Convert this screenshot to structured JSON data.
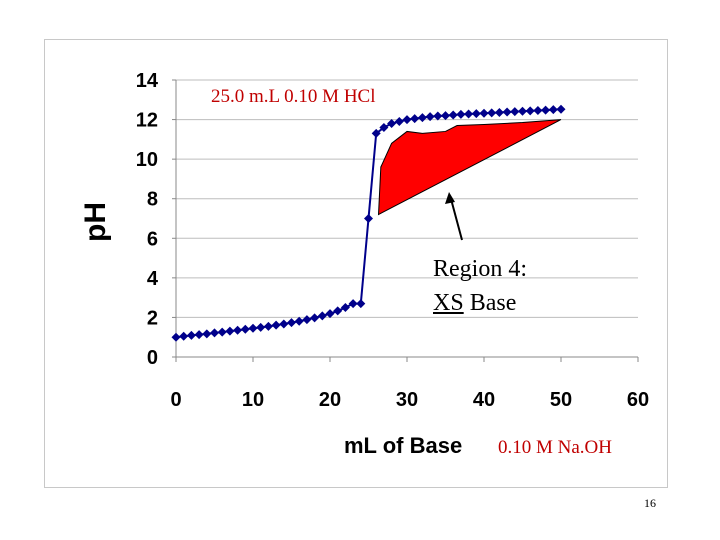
{
  "chart_data": {
    "type": "line",
    "title": "25.0 m.L 0.10 M HCl",
    "xlabel": "mL of Base",
    "ylabel": "pH",
    "xlim": [
      0,
      60
    ],
    "ylim": [
      0,
      14
    ],
    "xticks": [
      0,
      10,
      20,
      30,
      40,
      50,
      60
    ],
    "yticks": [
      0,
      2,
      4,
      6,
      8,
      10,
      12,
      14
    ],
    "grid": "horizontal",
    "series": [
      {
        "color": "#00008b",
        "x": [
          0,
          1,
          2,
          3,
          4,
          5,
          6,
          7,
          8,
          9,
          10,
          11,
          12,
          13,
          14,
          15,
          16,
          17,
          18,
          19,
          20,
          21,
          22,
          23,
          24,
          25,
          26,
          27,
          28,
          29,
          30,
          31,
          32,
          33,
          34,
          35,
          36,
          37,
          38,
          39,
          40,
          41,
          42,
          43,
          44,
          45,
          46,
          47,
          48,
          49,
          50
        ],
        "y": [
          1.0,
          1.05,
          1.09,
          1.13,
          1.17,
          1.22,
          1.26,
          1.31,
          1.35,
          1.4,
          1.45,
          1.5,
          1.55,
          1.61,
          1.67,
          1.74,
          1.81,
          1.89,
          1.98,
          2.08,
          2.19,
          2.33,
          2.5,
          2.7,
          2.7,
          7.0,
          11.3,
          11.6,
          11.8,
          11.9,
          12.0,
          12.05,
          12.1,
          12.15,
          12.18,
          12.2,
          12.23,
          12.26,
          12.28,
          12.3,
          12.32,
          12.34,
          12.36,
          12.38,
          12.4,
          12.42,
          12.44,
          12.46,
          12.48,
          12.5,
          12.52
        ]
      }
    ],
    "annotations": [
      {
        "type": "shaded_region",
        "label": "Region 4: XS Base",
        "color": "#ff0000",
        "x_range": [
          26,
          50
        ]
      }
    ]
  },
  "text": {
    "region_line1": "Region 4:",
    "region_line2_underlined": "XS",
    "region_line2_rest": " Base",
    "titrant": "0.10 M Na.OH",
    "slide_number": "16"
  }
}
